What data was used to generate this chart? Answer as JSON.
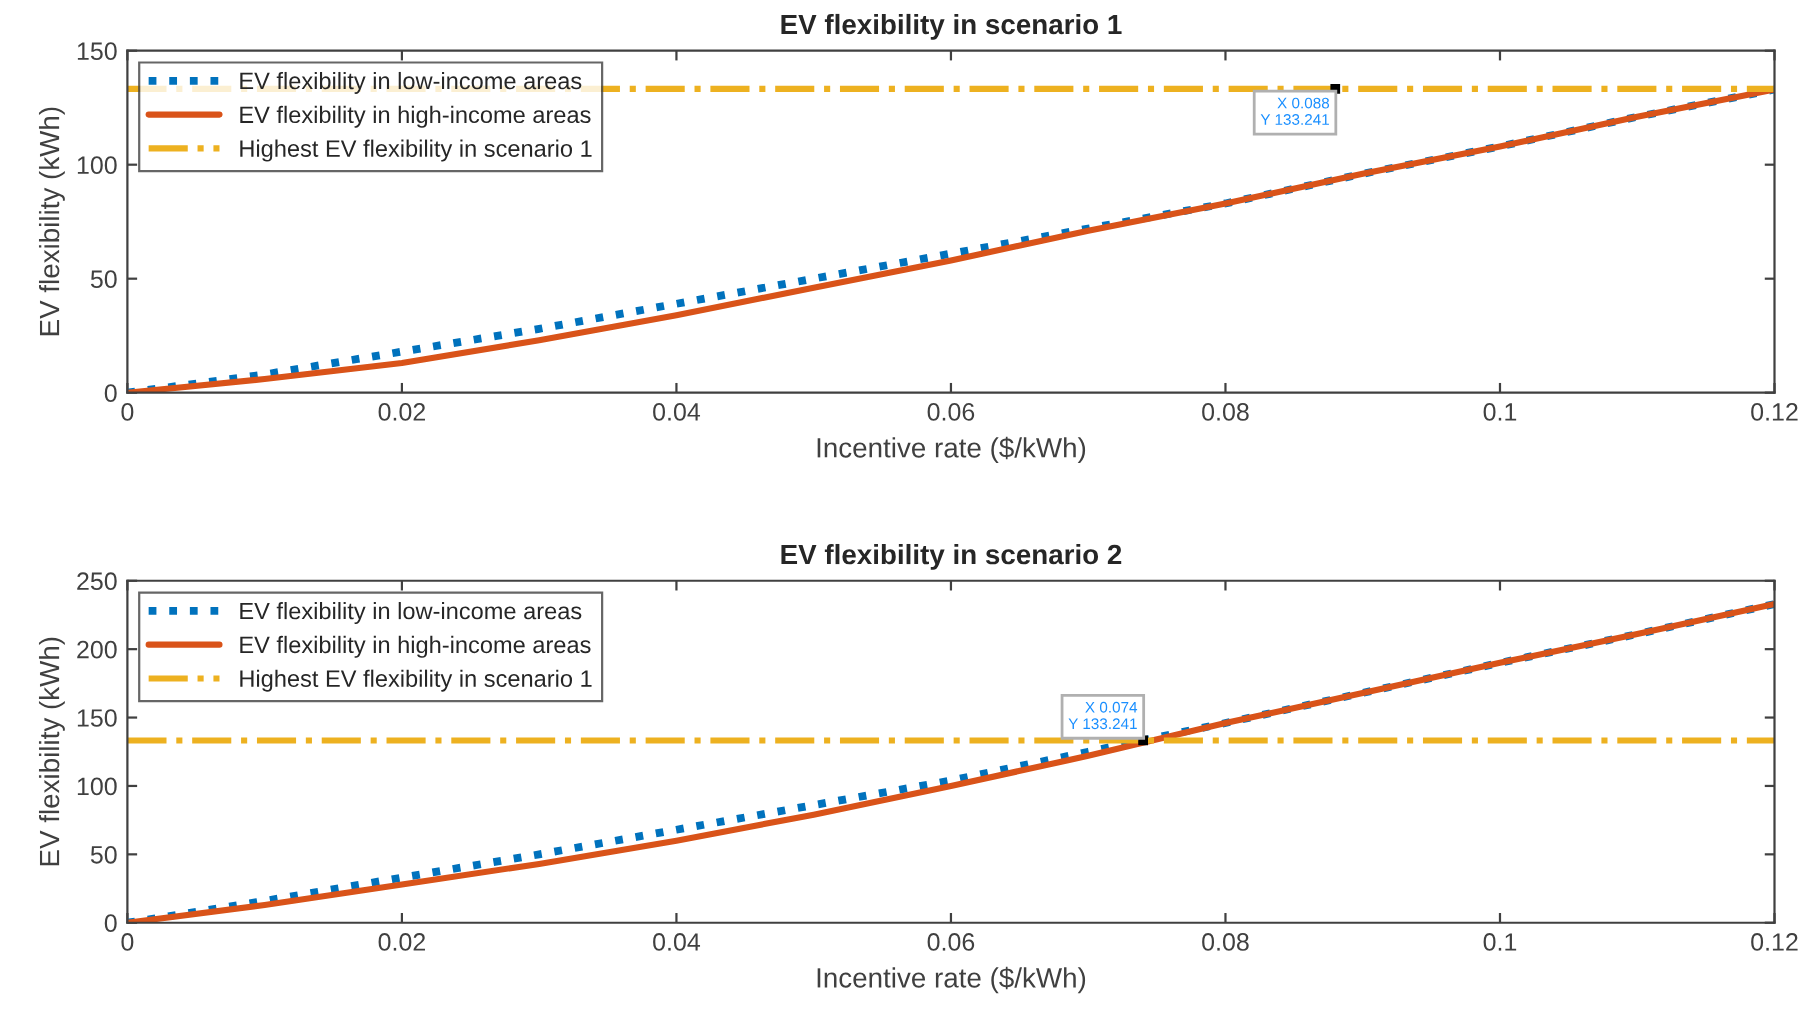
{
  "chart_data": [
    {
      "type": "line",
      "title": "EV flexibility in scenario 1",
      "xlabel": "Incentive rate ($/kWh)",
      "ylabel": "EV flexibility (kWh)",
      "x": [
        0,
        0.01,
        0.02,
        0.03,
        0.04,
        0.05,
        0.06,
        0.07,
        0.08,
        0.09,
        0.1,
        0.11,
        0.12
      ],
      "series": [
        {
          "name": "EV flexibility in low-income areas",
          "color": "#0072bd",
          "line_style": "dotted",
          "values": [
            0,
            8,
            18,
            28,
            39,
            50,
            61,
            72,
            83,
            96,
            108,
            121,
            133
          ]
        },
        {
          "name": "EV flexibility in high-income areas",
          "color": "#d95319",
          "line_style": "solid",
          "values": [
            0,
            6,
            13,
            23,
            34,
            46,
            58,
            71,
            83,
            96,
            108,
            121,
            133
          ]
        }
      ],
      "ref_lines": [
        {
          "axis": "y",
          "value": 133.241,
          "label": "Highest EV flexibility in scenario 1",
          "color": "#edb120",
          "line_style": "dashdot"
        }
      ],
      "annotations": [
        {
          "text": "X 0.088\nY 133.241",
          "x": 0.088,
          "y": 133.241
        }
      ],
      "xlim": [
        0,
        0.12
      ],
      "xticks": [
        0,
        0.02,
        0.04,
        0.06,
        0.08,
        0.1,
        0.12
      ],
      "ylim": [
        0,
        150
      ],
      "yticks": [
        0,
        50,
        100,
        150
      ],
      "legend": "top left"
    },
    {
      "type": "line",
      "title": "EV flexibility in scenario 2",
      "xlabel": "Incentive rate ($/kWh)",
      "ylabel": "EV flexibility (kWh)",
      "x": [
        0,
        0.01,
        0.02,
        0.03,
        0.04,
        0.05,
        0.06,
        0.07,
        0.08,
        0.09,
        0.1,
        0.11,
        0.12
      ],
      "series": [
        {
          "name": "EV flexibility in low-income areas",
          "color": "#0072bd",
          "line_style": "dotted",
          "values": [
            0,
            16,
            33,
            50,
            68,
            86,
            104,
            125,
            146,
            168,
            190,
            211,
            233
          ]
        },
        {
          "name": "EV flexibility in high-income areas",
          "color": "#d95319",
          "line_style": "solid",
          "values": [
            0,
            13,
            28,
            43,
            60,
            79,
            100,
            122,
            146,
            168,
            190,
            211,
            233
          ]
        }
      ],
      "ref_lines": [
        {
          "axis": "y",
          "value": 133.241,
          "label": "Highest EV flexibility in scenario 1",
          "color": "#edb120",
          "line_style": "dashdot"
        }
      ],
      "annotations": [
        {
          "text": "X 0.074\nY 133.241",
          "x": 0.074,
          "y": 133.241
        }
      ],
      "xlim": [
        0,
        0.12
      ],
      "xticks": [
        0,
        0.02,
        0.04,
        0.06,
        0.08,
        0.1,
        0.12
      ],
      "ylim": [
        0,
        250
      ],
      "yticks": [
        0,
        50,
        100,
        150,
        200,
        250
      ],
      "legend": "top left"
    }
  ]
}
